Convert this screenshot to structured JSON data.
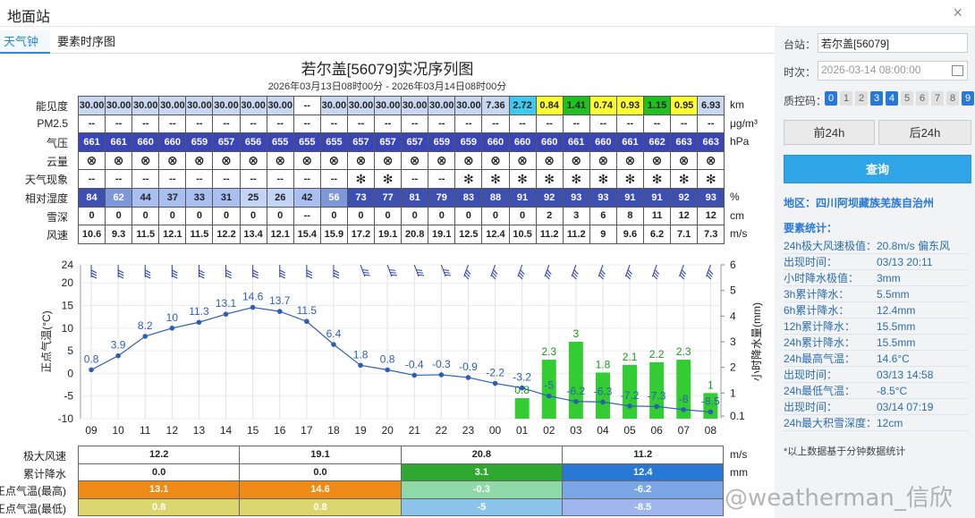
{
  "window": {
    "title": "地面站",
    "close": "×"
  },
  "tabs": [
    {
      "label": "天气钟"
    },
    {
      "label": "要素时序图"
    }
  ],
  "chart": {
    "title": "若尔盖[56079]实况序列图",
    "subtitle": "2026年03月13日08时00分 - 2026年03月14日08时00分"
  },
  "rows": [
    {
      "label": "能见度",
      "unit": "km",
      "values": [
        "30.00",
        "30.00",
        "30.00",
        "30.00",
        "30.00",
        "30.00",
        "30.00",
        "30.00",
        "--",
        "30.00",
        "30.00",
        "30.00",
        "30.00",
        "30.00",
        "30.00",
        "7.36",
        "2.72",
        "0.84",
        "1.41",
        "0.74",
        "0.93",
        "1.15",
        "0.95",
        "6.93"
      ],
      "colors": [
        "#c8d7ef",
        "#c8d7ef",
        "#c8d7ef",
        "#c8d7ef",
        "#c8d7ef",
        "#c8d7ef",
        "#c8d7ef",
        "#c8d7ef",
        "#ffffff",
        "#c8d7ef",
        "#c8d7ef",
        "#c8d7ef",
        "#c8d7ef",
        "#c8d7ef",
        "#c8d7ef",
        "#c8d7ef",
        "#3fc9ef",
        "#ffff33",
        "#20c020",
        "#ffff33",
        "#ffff33",
        "#20c020",
        "#ffff33",
        "#c8d7ef"
      ]
    },
    {
      "label": "PM2.5",
      "unit": "μg/m³",
      "values": [
        "--",
        "--",
        "--",
        "--",
        "--",
        "--",
        "--",
        "--",
        "--",
        "--",
        "--",
        "--",
        "--",
        "--",
        "--",
        "--",
        "--",
        "--",
        "--",
        "--",
        "--",
        "--",
        "--",
        "--"
      ]
    },
    {
      "label": "气压",
      "unit": "hPa",
      "values": [
        "661",
        "661",
        "660",
        "660",
        "659",
        "657",
        "656",
        "655",
        "655",
        "655",
        "657",
        "657",
        "657",
        "659",
        "659",
        "660",
        "660",
        "660",
        "661",
        "660",
        "661",
        "662",
        "663",
        "663"
      ],
      "color": "#3a46b8",
      "textColor": "#ffffff"
    },
    {
      "label": "云量",
      "unit": "",
      "values": [
        "⊗",
        "⊗",
        "⊗",
        "⊗",
        "⊗",
        "⊗",
        "⊗",
        "⊗",
        "⊗",
        "⊗",
        "⊗",
        "⊗",
        "⊗",
        "⊗",
        "⊗",
        "⊗",
        "⊗",
        "⊗",
        "⊗",
        "⊗",
        "⊗",
        "⊗",
        "⊗",
        "⊗"
      ]
    },
    {
      "label": "天气现象",
      "unit": "",
      "values": [
        "--",
        "--",
        "--",
        "--",
        "--",
        "--",
        "--",
        "--",
        "--",
        "--",
        "✻",
        "✻",
        "--",
        "--",
        "✻",
        "✻",
        "✻",
        "✻",
        "✻",
        "✻",
        "✻",
        "✻",
        "✻",
        "✻"
      ]
    },
    {
      "label": "相对湿度",
      "unit": "%",
      "values": [
        "84",
        "62",
        "44",
        "37",
        "33",
        "31",
        "25",
        "26",
        "42",
        "56",
        "73",
        "77",
        "81",
        "79",
        "83",
        "88",
        "91",
        "92",
        "93",
        "93",
        "91",
        "91",
        "92",
        "93"
      ],
      "colors": [
        "#3d4fb0",
        "#7d97d8",
        "#a9bff0",
        "#a9bff0",
        "#a9bff0",
        "#a9bff0",
        "#c4d4f6",
        "#c4d4f6",
        "#a9bff0",
        "#7d97d8",
        "#3d4fb0",
        "#3d4fb0",
        "#3d4fb0",
        "#3d4fb0",
        "#3d4fb0",
        "#3d4fb0",
        "#3d4fb0",
        "#3d4fb0",
        "#3d4fb0",
        "#3d4fb0",
        "#3d4fb0",
        "#3d4fb0",
        "#3d4fb0",
        "#3d4fb0"
      ],
      "textColors": [
        "#fff",
        "#fff",
        "#222",
        "#222",
        "#222",
        "#222",
        "#222",
        "#222",
        "#222",
        "#fff",
        "#fff",
        "#fff",
        "#fff",
        "#fff",
        "#fff",
        "#fff",
        "#fff",
        "#fff",
        "#fff",
        "#fff",
        "#fff",
        "#fff",
        "#fff",
        "#fff"
      ]
    },
    {
      "label": "雪深",
      "unit": "cm",
      "values": [
        "0",
        "0",
        "0",
        "0",
        "0",
        "0",
        "0",
        "0",
        "--",
        "0",
        "0",
        "0",
        "0",
        "0",
        "0",
        "0",
        "0",
        "2",
        "3",
        "6",
        "8",
        "11",
        "12",
        "12"
      ]
    },
    {
      "label": "风速",
      "unit": "m/s",
      "values": [
        "10.6",
        "9.3",
        "11.5",
        "12.1",
        "11.5",
        "12.2",
        "13.4",
        "12.1",
        "15.4",
        "15.9",
        "17.2",
        "19.1",
        "20.8",
        "19.1",
        "12.5",
        "12.4",
        "10.5",
        "11.2",
        "11.2",
        "9",
        "9.6",
        "6.2",
        "7.1",
        "7.3"
      ]
    }
  ],
  "chart_data": {
    "type": "line",
    "x": [
      "09",
      "10",
      "11",
      "12",
      "13",
      "14",
      "15",
      "16",
      "17",
      "18",
      "19",
      "20",
      "21",
      "22",
      "23",
      "00",
      "01",
      "02",
      "03",
      "04",
      "05",
      "06",
      "07",
      "08"
    ],
    "ylabel": "正点气温(°C)",
    "y2label": "小时降水量(mm)",
    "ylim": [
      -10,
      24
    ],
    "yticks": [
      24,
      20,
      15,
      10,
      5,
      0,
      -5,
      -10
    ],
    "y2lim": [
      0,
      6
    ],
    "y2ticks": [
      6,
      5,
      4,
      3,
      2,
      1,
      0.1
    ],
    "series": [
      {
        "values": [
          0.8,
          3.9,
          8.2,
          10,
          11.3,
          13.1,
          14.6,
          13.7,
          11.5,
          6.4,
          1.8,
          0.8,
          -0.4,
          -0.3,
          -0.9,
          -2.2,
          -3.2,
          -5,
          -6.2,
          -6.3,
          -7.2,
          -7.3,
          -8,
          -8.5
        ],
        "color": "#2b5fb5"
      },
      {
        "type": "bar",
        "values": [
          null,
          null,
          null,
          null,
          null,
          null,
          null,
          null,
          null,
          null,
          null,
          null,
          null,
          null,
          null,
          null,
          0.8,
          2.3,
          3,
          1.8,
          2.1,
          2.2,
          2.3,
          1
        ],
        "color": "#33cc33"
      }
    ],
    "grid": true
  },
  "summary": {
    "rows": [
      {
        "label": "极大风速",
        "unit": "m/s",
        "values": [
          "12.2",
          "19.1",
          "20.8",
          "11.2"
        ],
        "colors": [
          "#ffffff",
          "#ffffff",
          "#ffffff",
          "#ffffff"
        ],
        "textColors": [
          "#222",
          "#222",
          "#222",
          "#222"
        ]
      },
      {
        "label": "累计降水",
        "unit": "mm",
        "values": [
          "0.0",
          "0.0",
          "3.1",
          "12.4"
        ],
        "colors": [
          "#ffffff",
          "#ffffff",
          "#2ea82e",
          "#2a78d6"
        ],
        "textColors": [
          "#222",
          "#222",
          "#fff",
          "#fff"
        ]
      },
      {
        "label": "正点气温(最高)",
        "unit": "",
        "values": [
          "13.1",
          "14.6",
          "-0.3",
          "-6.2"
        ],
        "colors": [
          "#ef8a16",
          "#ef8a16",
          "#8fd9a8",
          "#7aa6e6"
        ],
        "textColors": [
          "#fff",
          "#fff",
          "#fff",
          "#fff"
        ]
      },
      {
        "label": "正点气温(最低)",
        "unit": "",
        "values": [
          "0.8",
          "0.8",
          "-5",
          "-8.5"
        ],
        "colors": [
          "#dcd66e",
          "#dcd66e",
          "#8bc4e8",
          "#9fb7ee"
        ],
        "textColors": [
          "#fff",
          "#fff",
          "#fff",
          "#fff"
        ]
      }
    ]
  },
  "panel": {
    "station_label": "台站：",
    "station_value": "若尔盖[56079]",
    "time_label": "时次：",
    "time_value": "2026-03-14 08:00:00",
    "qc_label": "质控码：",
    "qc_codes": [
      {
        "code": "0",
        "on": true
      },
      {
        "code": "1",
        "on": false
      },
      {
        "code": "2",
        "on": false
      },
      {
        "code": "3",
        "on": true
      },
      {
        "code": "4",
        "on": true
      },
      {
        "code": "5",
        "on": false
      },
      {
        "code": "6",
        "on": false
      },
      {
        "code": "7",
        "on": false
      },
      {
        "code": "8",
        "on": false
      },
      {
        "code": "9",
        "on": true
      }
    ],
    "prev_label": "前24h",
    "next_label": "后24h",
    "query_label": "查询",
    "region": "地区：四川阿坝藏族羌族自治州",
    "stats_title": "要素统计：",
    "stats": [
      {
        "k": "24h极大风速极值：",
        "v": "20.8m/s 偏东风"
      },
      {
        "k": "出现时间：",
        "v": "03/13 20:11"
      },
      {
        "k": "小时降水极值：",
        "v": "3mm"
      },
      {
        "k": "3h累计降水：",
        "v": "5.5mm"
      },
      {
        "k": "6h累计降水：",
        "v": "12.4mm"
      },
      {
        "k": "12h累计降水：",
        "v": "15.5mm"
      },
      {
        "k": "24h累计降水：",
        "v": "15.5mm"
      },
      {
        "k": "24h最高气温：",
        "v": "14.6°C"
      },
      {
        "k": "出现时间：",
        "v": "03/13 14:58"
      },
      {
        "k": "24h最低气温：",
        "v": "-8.5°C"
      },
      {
        "k": "出现时间：",
        "v": "03/14 07:19"
      },
      {
        "k": "24h最大积雪深度：",
        "v": "12cm"
      }
    ],
    "note": "*以上数据基于分钟数据统计"
  },
  "watermark": "@weatherman_信欣"
}
